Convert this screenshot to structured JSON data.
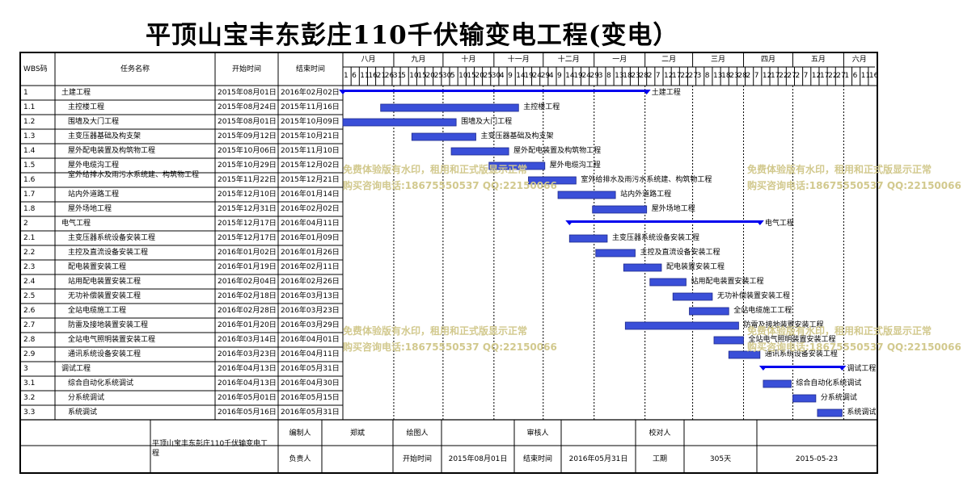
{
  "title": "平顶山宝丰东彭庄110千伏输变电工程(变电）",
  "columns": {
    "wbs": "WBS码",
    "name": "任务名称",
    "start": "开始时间",
    "end": "结束时间"
  },
  "months": [
    "八月",
    "九月",
    "十月",
    "十一月",
    "十二月",
    "一月",
    "二月",
    "三月",
    "四月",
    "五月",
    "六月"
  ],
  "day_ticks": [
    "1",
    "6",
    "11",
    "16",
    "21",
    "26",
    "31",
    "5",
    "10",
    "15",
    "20",
    "25",
    "30",
    "5",
    "10",
    "15",
    "20",
    "25",
    "30",
    "4",
    "9",
    "14",
    "19",
    "24",
    "29",
    "4",
    "9",
    "14",
    "19",
    "24",
    "29",
    "3",
    "8",
    "13",
    "18",
    "23",
    "28",
    "2",
    "7",
    "12",
    "17",
    "22",
    "27",
    "3",
    "8",
    "13",
    "18",
    "23",
    "28",
    "2",
    "7",
    "12",
    "17",
    "22",
    "27",
    "2",
    "7",
    "12",
    "17",
    "22",
    "27",
    "1",
    "6",
    "11",
    "16"
  ],
  "timeline_start": "2015-08-01",
  "timeline_end": "2016-06-20",
  "tasks": [
    {
      "wbs": "1",
      "name": "土建工程",
      "start": "2015年08月01日",
      "end": "2016年02月02日",
      "s": "2015-08-01",
      "e": "2016-02-02",
      "summary": true,
      "indent": 0
    },
    {
      "wbs": "1.1",
      "name": "主控楼工程",
      "start": "2015年08月24日",
      "end": "2015年11月16日",
      "s": "2015-08-24",
      "e": "2015-11-16",
      "summary": false,
      "indent": 1
    },
    {
      "wbs": "1.2",
      "name": "围墙及大门工程",
      "start": "2015年08月01日",
      "end": "2015年10月09日",
      "s": "2015-08-01",
      "e": "2015-10-09",
      "summary": false,
      "indent": 1
    },
    {
      "wbs": "1.3",
      "name": "主变压器基础及构支架",
      "start": "2015年09月12日",
      "end": "2015年10月21日",
      "s": "2015-09-12",
      "e": "2015-10-21",
      "summary": false,
      "indent": 1
    },
    {
      "wbs": "1.4",
      "name": "屋外配电装置及构筑物工程",
      "start": "2015年10月06日",
      "end": "2015年11月10日",
      "s": "2015-10-06",
      "e": "2015-11-10",
      "summary": false,
      "indent": 1
    },
    {
      "wbs": "1.5",
      "name": "屋外电缆沟工程",
      "start": "2015年10月29日",
      "end": "2015年12月02日",
      "s": "2015-10-29",
      "e": "2015-12-02",
      "summary": false,
      "indent": 1
    },
    {
      "wbs": "1.6",
      "name": "室外给排水及雨污水系统建、构筑物工程",
      "start": "2015年11月22日",
      "end": "2015年12月21日",
      "s": "2015-11-22",
      "e": "2015-12-21",
      "summary": false,
      "indent": 1
    },
    {
      "wbs": "1.7",
      "name": "站内外道路工程",
      "start": "2015年12月10日",
      "end": "2016年01月14日",
      "s": "2015-12-10",
      "e": "2016-01-14",
      "summary": false,
      "indent": 1
    },
    {
      "wbs": "1.8",
      "name": "屋外场地工程",
      "start": "2015年12月31日",
      "end": "2016年02月02日",
      "s": "2015-12-31",
      "e": "2016-02-02",
      "summary": false,
      "indent": 1
    },
    {
      "wbs": "2",
      "name": "电气工程",
      "start": "2015年12月17日",
      "end": "2016年04月11日",
      "s": "2015-12-17",
      "e": "2016-04-11",
      "summary": true,
      "indent": 0
    },
    {
      "wbs": "2.1",
      "name": "主变压器系统设备安装工程",
      "start": "2015年12月17日",
      "end": "2016年01月09日",
      "s": "2015-12-17",
      "e": "2016-01-09",
      "summary": false,
      "indent": 1
    },
    {
      "wbs": "2.2",
      "name": "主控及直流设备安装工程",
      "start": "2016年01月02日",
      "end": "2016年01月26日",
      "s": "2016-01-02",
      "e": "2016-01-26",
      "summary": false,
      "indent": 1
    },
    {
      "wbs": "2.3",
      "name": "配电装置安装工程",
      "start": "2016年01月19日",
      "end": "2016年02月11日",
      "s": "2016-01-19",
      "e": "2016-02-11",
      "summary": false,
      "indent": 1
    },
    {
      "wbs": "2.4",
      "name": "站用配电装置安装工程",
      "start": "2016年02月04日",
      "end": "2016年02月26日",
      "s": "2016-02-04",
      "e": "2016-02-26",
      "summary": false,
      "indent": 1
    },
    {
      "wbs": "2.5",
      "name": "无功补偿装置安装工程",
      "start": "2016年02月18日",
      "end": "2016年03月13日",
      "s": "2016-02-18",
      "e": "2016-03-13",
      "summary": false,
      "indent": 1
    },
    {
      "wbs": "2.6",
      "name": "全站电缆施工工程",
      "start": "2016年02月28日",
      "end": "2016年03月23日",
      "s": "2016-02-28",
      "e": "2016-03-23",
      "summary": false,
      "indent": 1
    },
    {
      "wbs": "2.7",
      "name": "防雷及接地装置安装工程",
      "start": "2016年01月20日",
      "end": "2016年03月29日",
      "s": "2016-01-20",
      "e": "2016-03-29",
      "summary": false,
      "indent": 1
    },
    {
      "wbs": "2.8",
      "name": "全站电气照明装置安装工程",
      "start": "2016年03月14日",
      "end": "2016年04月01日",
      "s": "2016-03-14",
      "e": "2016-04-01",
      "summary": false,
      "indent": 1
    },
    {
      "wbs": "2.9",
      "name": "通讯系统设备安装工程",
      "start": "2016年03月23日",
      "end": "2016年04月11日",
      "s": "2016-03-23",
      "e": "2016-04-11",
      "summary": false,
      "indent": 1
    },
    {
      "wbs": "3",
      "name": "调试工程",
      "start": "2016年04月13日",
      "end": "2016年05月31日",
      "s": "2016-04-13",
      "e": "2016-05-31",
      "summary": true,
      "indent": 0
    },
    {
      "wbs": "3.1",
      "name": "综合自动化系统调试",
      "start": "2016年04月13日",
      "end": "2016年04月30日",
      "s": "2016-04-13",
      "e": "2016-04-30",
      "summary": false,
      "indent": 1
    },
    {
      "wbs": "3.2",
      "name": "分系统调试",
      "start": "2016年05月01日",
      "end": "2016年05月15日",
      "s": "2016-05-01",
      "e": "2016-05-15",
      "summary": false,
      "indent": 1
    },
    {
      "wbs": "3.3",
      "name": "系统调试",
      "start": "2016年05月16日",
      "end": "2016年05月31日",
      "s": "2016-05-16",
      "e": "2016-05-31",
      "summary": false,
      "indent": 1
    }
  ],
  "footer": {
    "project": "平顶山宝丰东彭庄110千伏输变电工程",
    "compiler_label": "编制人",
    "compiler": "郑斌",
    "drawer_label": "绘图人",
    "drawer": "",
    "reviewer_label": "审核人",
    "reviewer": "",
    "checker_label": "校对人",
    "checker": "",
    "owner_label": "负责人",
    "owner": "",
    "start_label": "开始时间",
    "start": "2015年08月01日",
    "end_label": "结束时间",
    "end": "2016年05月31日",
    "duration_label": "工期",
    "duration": "305天",
    "date": "2015-05-23"
  },
  "watermark": {
    "line1": "免费体验版有水印，租用和正式版显示正常",
    "line2": "购买咨询电话:18675550537 QQ:22150066"
  },
  "colors": {
    "bar_fill": "#3a4fd8",
    "summary": "#0000ee",
    "watermark": "#d2c98e"
  }
}
